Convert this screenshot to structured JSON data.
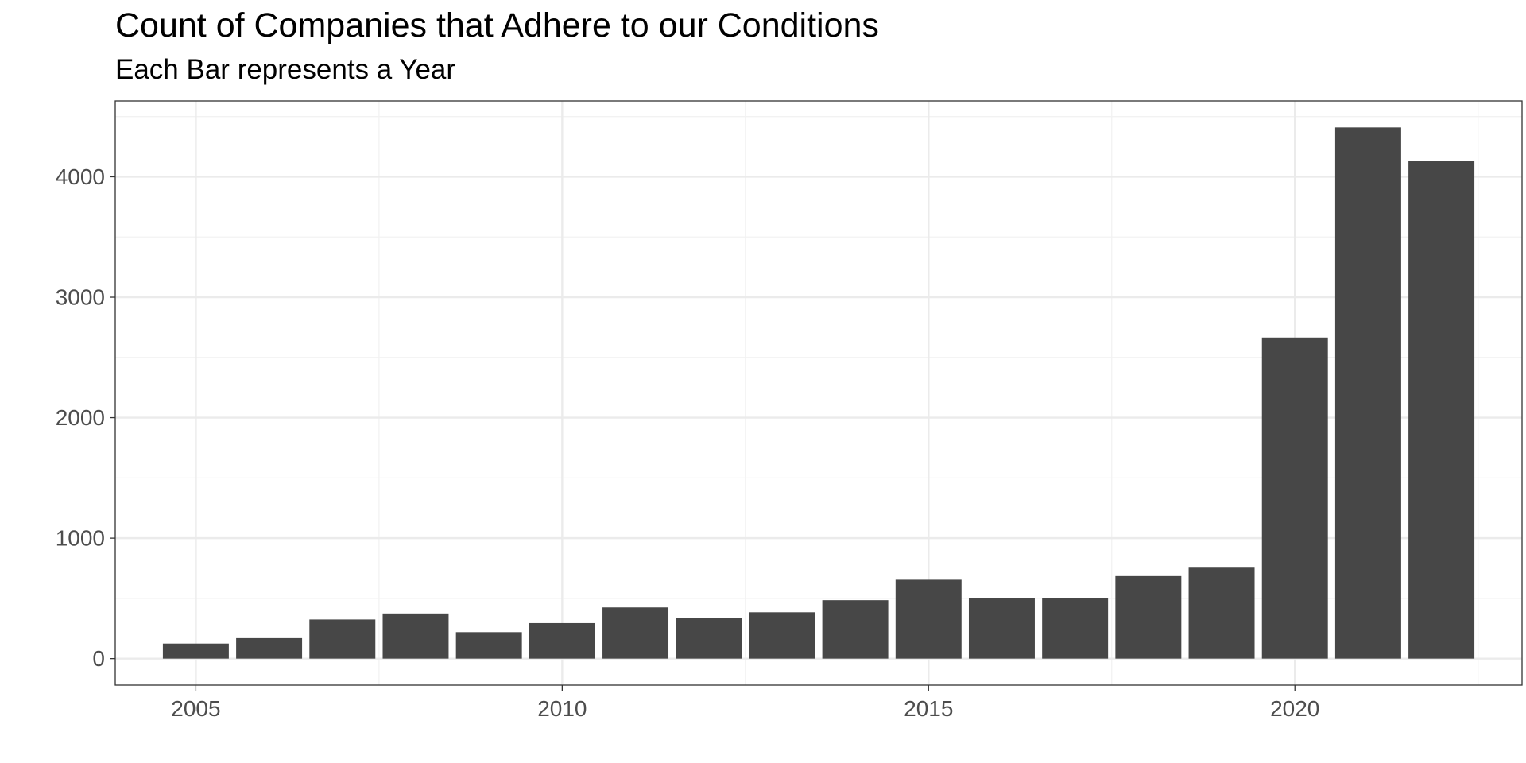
{
  "chart_data": {
    "type": "bar",
    "title": "Count of Companies that Adhere to our Conditions",
    "subtitle": "Each Bar represents a Year",
    "xlabel": "",
    "ylabel": "",
    "categories": [
      2005,
      2006,
      2007,
      2008,
      2009,
      2010,
      2011,
      2012,
      2013,
      2014,
      2015,
      2016,
      2017,
      2018,
      2019,
      2020,
      2021,
      2022
    ],
    "values": [
      125,
      170,
      325,
      375,
      220,
      295,
      425,
      340,
      385,
      485,
      655,
      505,
      505,
      685,
      755,
      2665,
      4410,
      4135
    ],
    "x_ticks": [
      "2005",
      "2010",
      "2015",
      "2020"
    ],
    "y_ticks": [
      "0",
      "1000",
      "2000",
      "3000",
      "4000"
    ],
    "xlim": [
      2003.9,
      2023.1
    ],
    "ylim": [
      -220,
      4630
    ],
    "grid": true,
    "bar_color": "#474747",
    "panel_border_color": "#333333",
    "grid_major_color": "#ebebeb",
    "grid_minor_color": "#f2f2f2"
  }
}
